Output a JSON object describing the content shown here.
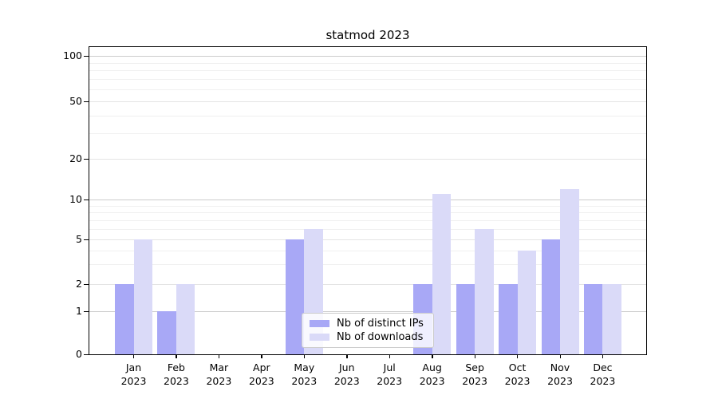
{
  "chart_data": {
    "type": "bar",
    "title": "statmod 2023",
    "categories": [
      "Jan 2023",
      "Feb 2023",
      "Mar 2023",
      "Apr 2023",
      "May 2023",
      "Jun 2023",
      "Jul 2023",
      "Aug 2023",
      "Sep 2023",
      "Oct 2023",
      "Nov 2023",
      "Dec 2023"
    ],
    "series": [
      {
        "name": "Nb of distinct IPs",
        "color": "#a8a8f6",
        "values": [
          2,
          1,
          0,
          0,
          5,
          0,
          0,
          2,
          2,
          2,
          5,
          2
        ]
      },
      {
        "name": "Nb of downloads",
        "color": "#dadaf8",
        "values": [
          5,
          2,
          0,
          0,
          6,
          0,
          0,
          11,
          6,
          4,
          12,
          2
        ]
      }
    ],
    "xlabel": "",
    "ylabel": "",
    "y_axis": {
      "scale": "log-like with zero baseline",
      "major_ticks": [
        0,
        1,
        2,
        5,
        10,
        20,
        50,
        100
      ],
      "minor_gridlines": [
        3,
        4,
        6,
        7,
        8,
        9,
        30,
        40,
        60,
        70,
        80,
        90
      ],
      "range": [
        0,
        115
      ]
    },
    "grid": true,
    "legend": {
      "position": "lower-center-inside",
      "labels": [
        "Nb of distinct IPs",
        "Nb of downloads"
      ]
    }
  },
  "colors": {
    "bar_distinct_ips": "#a8a8f6",
    "bar_downloads": "#dadaf8",
    "grid_decade": "#cccccc",
    "grid_major": "#e4e4e4",
    "grid_minor": "#f0f0f0",
    "axis_spine": "#000000",
    "background": "#ffffff"
  }
}
